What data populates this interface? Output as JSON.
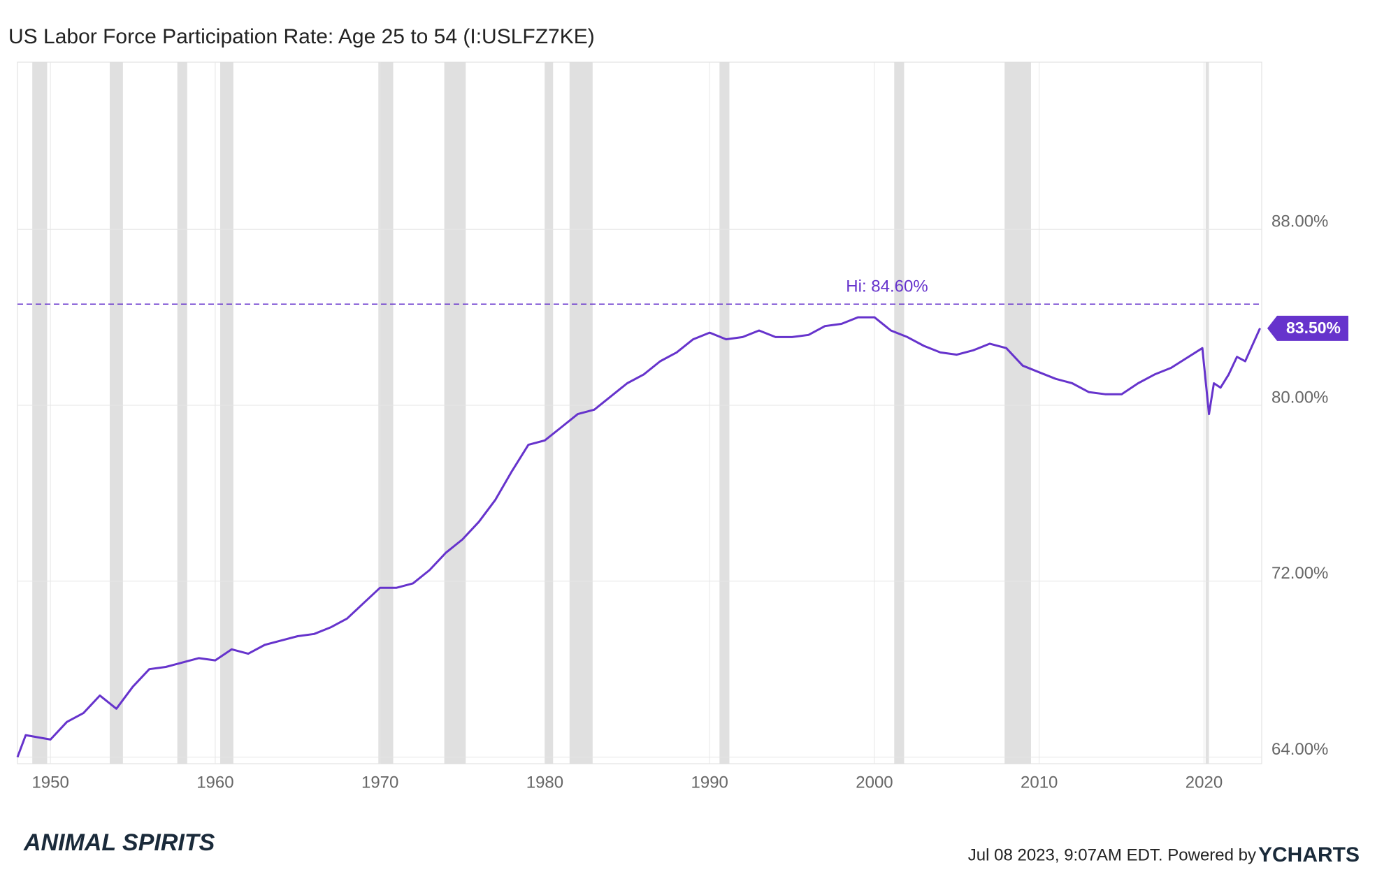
{
  "chart_data": {
    "type": "line",
    "title": "US Labor Force Participation Rate: Age 25 to 54 (I:USLFZ7KE)",
    "color": "#6633cc",
    "x": [
      1948.0,
      1948.5,
      1950,
      1951,
      1952,
      1953,
      1954,
      1955,
      1956,
      1957,
      1958,
      1959,
      1960,
      1961,
      1962,
      1963,
      1964,
      1965,
      1966,
      1967,
      1968,
      1969,
      1970,
      1971,
      1972,
      1973,
      1974,
      1975,
      1976,
      1977,
      1978,
      1979,
      1980,
      1981,
      1982,
      1983,
      1984,
      1985,
      1986,
      1987,
      1988,
      1989,
      1990,
      1991,
      1992,
      1993,
      1994,
      1995,
      1996,
      1997,
      1998,
      1999,
      2000,
      2001,
      2002,
      2003,
      2004,
      2005,
      2006,
      2007,
      2008,
      2009,
      2010,
      2011,
      2012,
      2013,
      2014,
      2015,
      2016,
      2017,
      2018,
      2019.9,
      2020.3,
      2020.6,
      2021,
      2021.5,
      2022,
      2022.5,
      2023.4
    ],
    "values": [
      64.0,
      65.0,
      64.8,
      65.6,
      66.0,
      66.8,
      66.2,
      67.2,
      68.0,
      68.1,
      68.3,
      68.5,
      68.4,
      68.9,
      68.7,
      69.1,
      69.3,
      69.5,
      69.6,
      69.9,
      70.3,
      71.0,
      71.7,
      71.7,
      71.9,
      72.5,
      73.3,
      73.9,
      74.7,
      75.7,
      77.0,
      78.2,
      78.4,
      79.0,
      79.6,
      79.8,
      80.4,
      81.0,
      81.4,
      82.0,
      82.4,
      83.0,
      83.3,
      83.0,
      83.1,
      83.4,
      83.1,
      83.1,
      83.2,
      83.6,
      83.7,
      84.0,
      84.0,
      83.4,
      83.1,
      82.7,
      82.4,
      82.3,
      82.5,
      82.8,
      82.6,
      81.8,
      81.5,
      81.2,
      81.0,
      80.6,
      80.5,
      80.5,
      81.0,
      81.4,
      81.7,
      82.6,
      79.6,
      81.0,
      80.8,
      81.4,
      82.2,
      82.0,
      83.5
    ],
    "recessions": [
      [
        1948.9,
        1949.8
      ],
      [
        1953.6,
        1954.4
      ],
      [
        1957.7,
        1958.3
      ],
      [
        1960.3,
        1961.1
      ],
      [
        1969.9,
        1970.8
      ],
      [
        1973.9,
        1975.2
      ],
      [
        1980.0,
        1980.5
      ],
      [
        1981.5,
        1982.9
      ],
      [
        1990.6,
        1991.2
      ],
      [
        2001.2,
        2001.8
      ],
      [
        2007.9,
        2009.5
      ],
      [
        2020.1,
        2020.3
      ]
    ],
    "xlim": [
      1948.0,
      2023.5
    ],
    "xticks": [
      1950,
      1960,
      1970,
      1980,
      1990,
      2000,
      2010,
      2020
    ],
    "ylim": [
      63.7,
      95.6
    ],
    "yticks": [
      {
        "value": 64,
        "label": "64.00%"
      },
      {
        "value": 72,
        "label": "72.00%"
      },
      {
        "value": 80,
        "label": "80.00%"
      },
      {
        "value": 88,
        "label": "88.00%"
      }
    ],
    "grid": true,
    "high": {
      "value": 84.6,
      "label": "Hi: 84.60%"
    },
    "last": {
      "value": 83.5,
      "label": "83.50%"
    }
  },
  "footer": {
    "logo": "ANIMAL SPIRITS",
    "timestamp": "Jul 08 2023, 9:07AM EDT. Powered by",
    "brand": "YCHARTS"
  }
}
